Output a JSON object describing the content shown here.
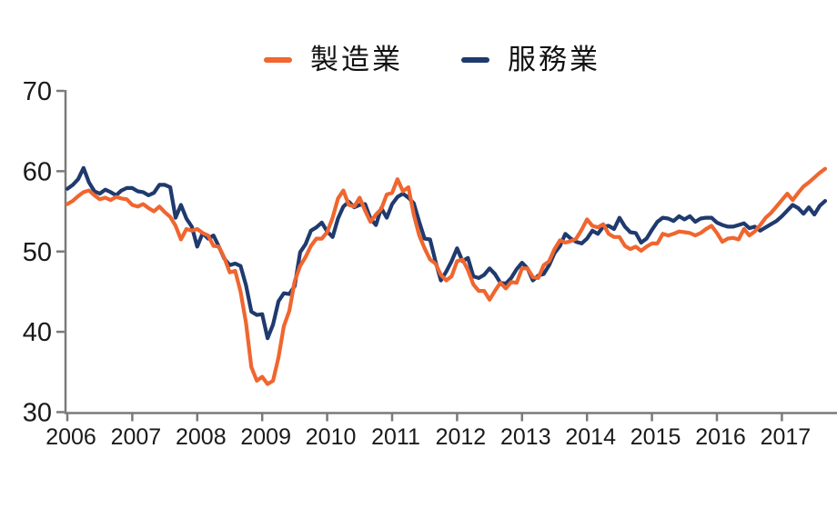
{
  "chart_data": {
    "type": "line",
    "title": "",
    "frequency": "monthly",
    "x_start": "2006-01",
    "x_end": "2017-09",
    "x_tick_labels": [
      "2006",
      "2007",
      "2008",
      "2009",
      "2010",
      "2011",
      "2012",
      "2013",
      "2014",
      "2015",
      "2016",
      "2017"
    ],
    "y_tick_labels": [
      "30",
      "40",
      "50",
      "60",
      "70"
    ],
    "y_ticks": [
      30,
      40,
      50,
      60,
      70
    ],
    "ylim": [
      30,
      70
    ],
    "grid": false,
    "legend_position": "top-center",
    "axis_color": "#7a7a7a",
    "label_color": "#1a1a1a",
    "series": [
      {
        "name": "製造業",
        "color": "#f0662f",
        "values": [
          55.9,
          56.3,
          56.9,
          57.4,
          57.6,
          57.0,
          56.5,
          56.7,
          56.4,
          56.8,
          56.6,
          56.5,
          55.8,
          55.6,
          55.9,
          55.4,
          55.0,
          55.6,
          54.9,
          54.3,
          53.2,
          51.5,
          52.8,
          52.6,
          52.8,
          52.3,
          52.0,
          50.7,
          50.6,
          49.2,
          47.4,
          47.6,
          45.0,
          41.1,
          35.6,
          33.9,
          34.4,
          33.5,
          33.9,
          36.8,
          40.7,
          42.6,
          46.3,
          48.2,
          49.3,
          50.7,
          51.6,
          51.6,
          52.4,
          54.2,
          56.6,
          57.6,
          55.8,
          55.6,
          56.7,
          55.1,
          53.7,
          54.6,
          55.3,
          57.1,
          57.3,
          59.0,
          57.5,
          58.0,
          54.6,
          52.0,
          50.4,
          49.0,
          48.5,
          47.1,
          46.4,
          46.9,
          48.8,
          49.0,
          47.7,
          45.9,
          45.1,
          45.1,
          44.0,
          45.1,
          46.1,
          45.4,
          46.2,
          46.1,
          47.9,
          47.9,
          46.8,
          46.7,
          48.3,
          48.8,
          50.3,
          51.4,
          51.1,
          51.3,
          51.6,
          52.7,
          54.0,
          53.2,
          53.0,
          53.4,
          52.2,
          51.8,
          51.8,
          50.7,
          50.3,
          50.6,
          50.1,
          50.6,
          51.0,
          51.0,
          52.2,
          52.0,
          52.2,
          52.5,
          52.4,
          52.3,
          52.0,
          52.3,
          52.8,
          53.2,
          52.3,
          51.2,
          51.6,
          51.7,
          51.5,
          52.8,
          52.0,
          52.5,
          53.3,
          54.2,
          54.8,
          55.6,
          56.4,
          57.2,
          56.4,
          57.3,
          58.1,
          58.6,
          59.2,
          59.8,
          60.3
        ]
      },
      {
        "name": "服務業",
        "color": "#1f3a6e",
        "values": [
          57.8,
          58.3,
          59.0,
          60.4,
          58.6,
          57.5,
          57.2,
          57.7,
          57.4,
          57.0,
          57.6,
          57.9,
          57.9,
          57.5,
          57.4,
          57.0,
          57.3,
          58.3,
          58.3,
          58.0,
          54.2,
          55.8,
          54.1,
          53.1,
          50.6,
          52.3,
          51.6,
          52.0,
          50.6,
          49.1,
          48.3,
          48.5,
          48.2,
          45.8,
          42.5,
          42.1,
          42.2,
          39.2,
          40.9,
          43.8,
          44.8,
          44.7,
          45.7,
          49.9,
          50.9,
          52.6,
          53.0,
          53.6,
          52.5,
          51.8,
          54.1,
          55.6,
          56.2,
          55.5,
          55.8,
          55.9,
          54.1,
          53.3,
          55.4,
          54.2,
          55.9,
          56.8,
          57.2,
          56.7,
          56.0,
          53.7,
          51.6,
          51.5,
          48.8,
          46.4,
          47.5,
          48.8,
          50.4,
          48.8,
          49.2,
          46.9,
          46.7,
          47.1,
          47.9,
          47.2,
          46.1,
          46.0,
          46.7,
          47.8,
          48.6,
          47.9,
          46.4,
          47.0,
          47.2,
          48.3,
          49.8,
          50.7,
          52.2,
          51.6,
          51.2,
          51.0,
          51.6,
          52.6,
          52.2,
          53.1,
          53.2,
          52.8,
          54.2,
          53.1,
          52.4,
          52.3,
          51.1,
          51.6,
          52.7,
          53.7,
          54.2,
          54.1,
          53.8,
          54.4,
          54.0,
          54.4,
          53.7,
          54.1,
          54.2,
          54.2,
          53.6,
          53.3,
          53.1,
          53.1,
          53.3,
          53.5,
          52.9,
          53.1,
          52.6,
          53.0,
          53.4,
          53.8,
          54.4,
          55.1,
          55.8,
          55.4,
          54.7,
          55.5,
          54.6,
          55.7,
          56.3
        ]
      }
    ]
  }
}
